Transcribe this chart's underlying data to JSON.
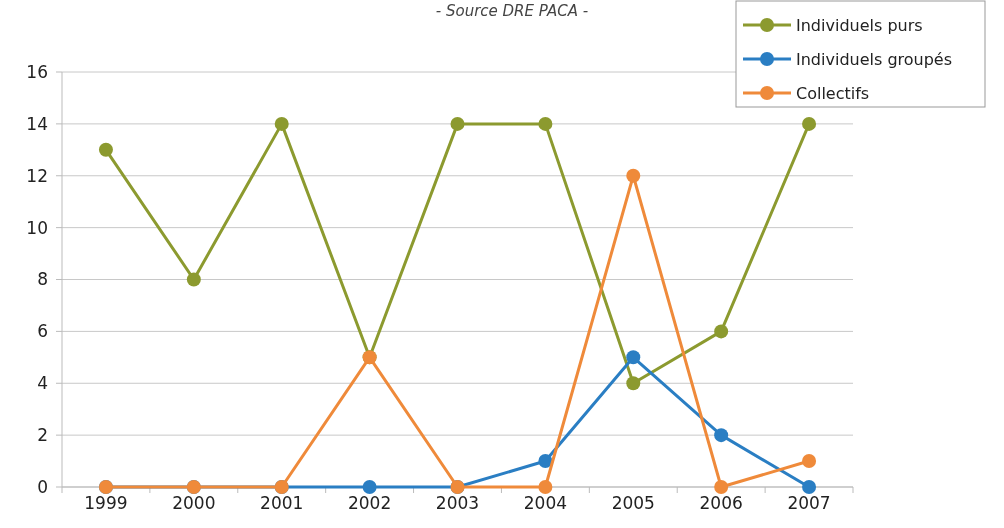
{
  "chart_data": {
    "type": "line",
    "title": "- Source DRE PACA -",
    "categories": [
      "1999",
      "2000",
      "2001",
      "2002",
      "2003",
      "2004",
      "2005",
      "2006",
      "2007"
    ],
    "series": [
      {
        "name": "Individuels purs",
        "color": "#8c9a2f",
        "values": [
          13,
          8,
          14,
          5,
          14,
          14,
          4,
          6,
          14
        ]
      },
      {
        "name": "Individuels groupés",
        "color": "#2a7ec3",
        "values": [
          0,
          0,
          0,
          0,
          0,
          1,
          5,
          2,
          0
        ]
      },
      {
        "name": "Collectifs",
        "color": "#ef8a3a",
        "values": [
          0,
          0,
          0,
          5,
          0,
          0,
          12,
          0,
          1
        ]
      }
    ],
    "ylim": [
      0,
      16
    ],
    "yticks": [
      0,
      2,
      4,
      6,
      8,
      10,
      12,
      14,
      16
    ],
    "grid": "y",
    "legend": "top right",
    "marker": "circle",
    "line_style": "solid"
  }
}
